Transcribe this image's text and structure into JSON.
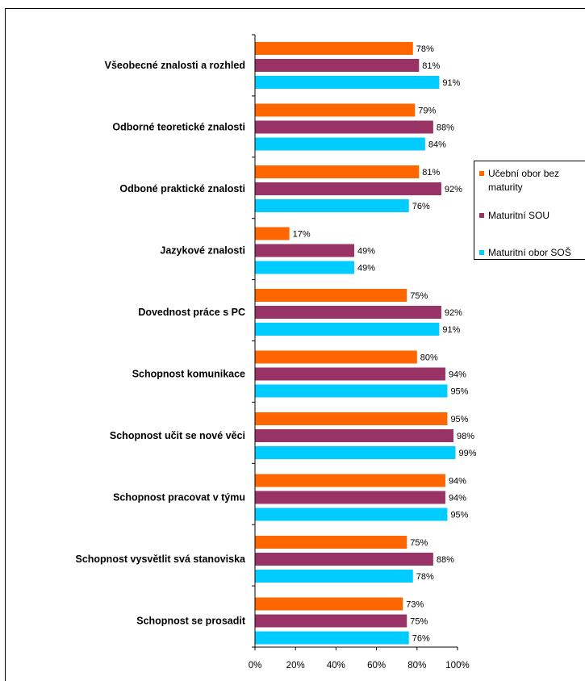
{
  "chart_data": {
    "type": "bar",
    "orientation": "horizontal",
    "categories": [
      "Všeobecné znalosti a rozhled",
      "Odborné teoretické znalosti",
      "Odboné praktické znalosti",
      "Jazykové znalosti",
      "Dovednost práce s PC",
      "Schopnost komunikace",
      "Schopnost učit se nové věci",
      "Schopnost pracovat v týmu",
      "Schopnost vysvětlit svá stanoviska",
      "Schopnost se prosadit"
    ],
    "series": [
      {
        "name": "Učební obor bez maturity",
        "color": "#ff6600",
        "values": [
          78,
          79,
          81,
          17,
          75,
          80,
          95,
          94,
          75,
          73
        ]
      },
      {
        "name": "Maturitní SOU",
        "color": "#993366",
        "values": [
          81,
          88,
          92,
          49,
          92,
          94,
          98,
          94,
          88,
          75
        ]
      },
      {
        "name": "Maturitní obor SOŠ",
        "color": "#00ccff",
        "values": [
          91,
          84,
          76,
          49,
          91,
          95,
          99,
          95,
          78,
          76
        ]
      }
    ],
    "value_suffix": "%",
    "xlim": [
      0,
      100
    ],
    "x_ticks": [
      "0%",
      "20%",
      "40%",
      "60%",
      "80%",
      "100%"
    ],
    "legend_position": "right",
    "grid": false
  }
}
